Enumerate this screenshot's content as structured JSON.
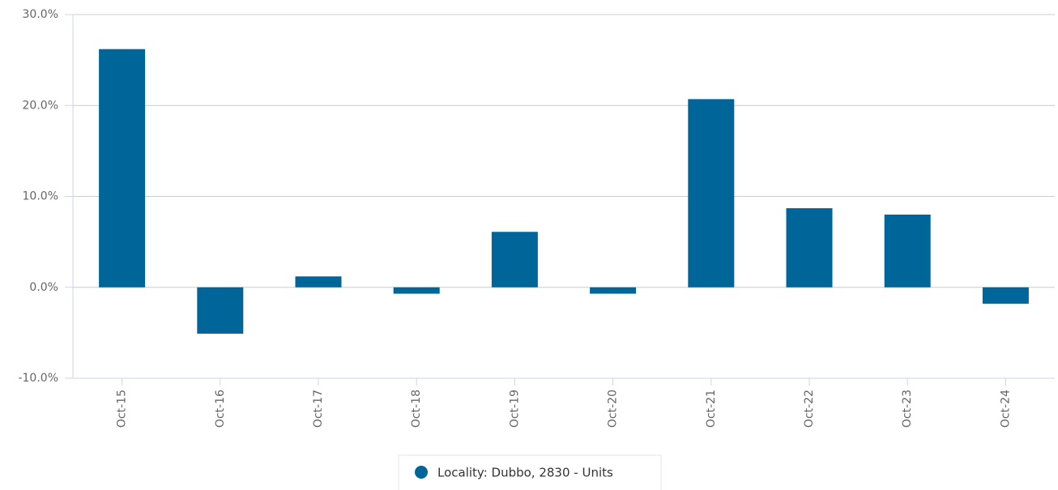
{
  "chart_data": {
    "type": "bar",
    "categories": [
      "Oct-15",
      "Oct-16",
      "Oct-17",
      "Oct-18",
      "Oct-19",
      "Oct-20",
      "Oct-21",
      "Oct-22",
      "Oct-23",
      "Oct-24"
    ],
    "series": [
      {
        "name": "Locality: Dubbo, 2830 - Units",
        "color": "#006699",
        "values": [
          26.2,
          -5.1,
          1.2,
          -0.7,
          6.1,
          -0.7,
          20.7,
          8.7,
          8.0,
          -1.8
        ]
      }
    ],
    "ylim": [
      -10,
      30
    ],
    "yticks": [
      {
        "value": -10,
        "label": "-10.0%"
      },
      {
        "value": 0,
        "label": "0.0%"
      },
      {
        "value": 10,
        "label": "10.0%"
      },
      {
        "value": 20,
        "label": "20.0%"
      },
      {
        "value": 30,
        "label": "30.0%"
      }
    ],
    "grid": true,
    "legend": "bottom"
  }
}
